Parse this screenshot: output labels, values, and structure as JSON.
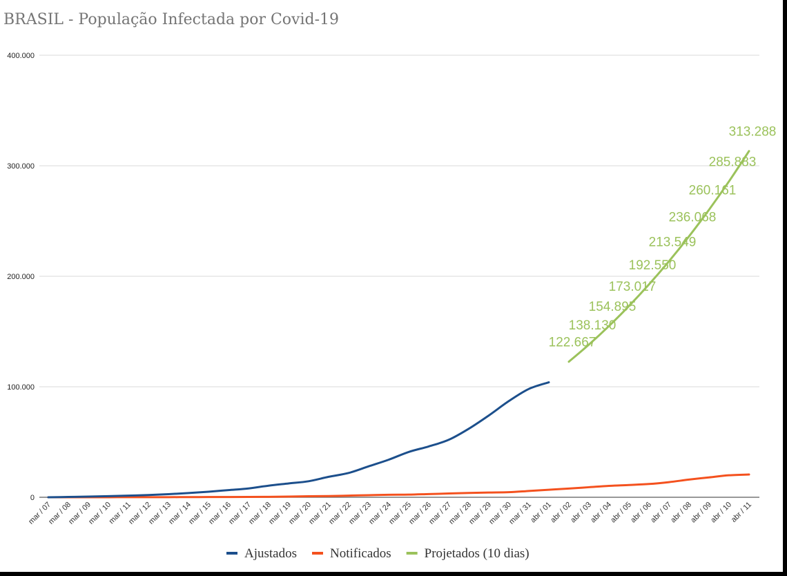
{
  "chart_data": {
    "type": "line",
    "title": "BRASIL - População Infectada por Covid-19",
    "xlabel": "",
    "ylabel": "",
    "ylim": [
      0,
      400000
    ],
    "yticks": [
      0,
      100000,
      200000,
      300000,
      400000
    ],
    "ytick_labels": [
      "0",
      "100.000",
      "200.000",
      "300.000",
      "400.000"
    ],
    "grid": true,
    "legend_position": "bottom",
    "categories": [
      "mar / 07",
      "mar / 08",
      "mar / 09",
      "mar / 10",
      "mar / 11",
      "mar / 12",
      "mar / 13",
      "mar / 14",
      "mar / 15",
      "mar / 16",
      "mar / 17",
      "mar / 18",
      "mar / 19",
      "mar / 20",
      "mar / 21",
      "mar / 22",
      "mar / 23",
      "mar / 24",
      "mar / 25",
      "mar / 26",
      "mar / 27",
      "mar / 28",
      "mar / 29",
      "mar / 30",
      "mar / 31",
      "abr / 01",
      "abr / 02",
      "abr / 03",
      "abr / 04",
      "abr / 05",
      "abr / 06",
      "abr / 07",
      "abr / 08",
      "abr / 09",
      "abr / 10",
      "abr / 11"
    ],
    "series": [
      {
        "name": "Ajustados",
        "color": "#1c4f8c",
        "values": [
          0,
          300,
          600,
          1000,
          1500,
          2000,
          2800,
          3800,
          5000,
          6500,
          8000,
          10500,
          12500,
          14500,
          18500,
          22000,
          28000,
          34000,
          41000,
          46000,
          52000,
          62000,
          74000,
          87000,
          98000,
          104000,
          null,
          null,
          null,
          null,
          null,
          null,
          null,
          null,
          null,
          null
        ]
      },
      {
        "name": "Notificados",
        "color": "#f4511e",
        "values": [
          20,
          25,
          30,
          35,
          50,
          80,
          100,
          150,
          200,
          250,
          300,
          400,
          600,
          900,
          1100,
          1500,
          1900,
          2300,
          2400,
          2900,
          3400,
          3900,
          4300,
          4600,
          5700,
          6800,
          7900,
          9100,
          10300,
          11100,
          12000,
          13700,
          16000,
          18000,
          19900,
          20600
        ]
      },
      {
        "name": "Projetados (10 dias)",
        "color": "#9bc25b",
        "values": [
          null,
          null,
          null,
          null,
          null,
          null,
          null,
          null,
          null,
          null,
          null,
          null,
          null,
          null,
          null,
          null,
          null,
          null,
          null,
          null,
          null,
          null,
          null,
          null,
          null,
          null,
          122667,
          138130,
          154895,
          173017,
          192550,
          213549,
          236068,
          260161,
          285883,
          313288
        ],
        "data_labels": [
          "122.667",
          "138.130",
          "154.895",
          "173.017",
          "192.550",
          "213.549",
          "236.068",
          "260.161",
          "285.883",
          "313.288"
        ]
      }
    ]
  }
}
